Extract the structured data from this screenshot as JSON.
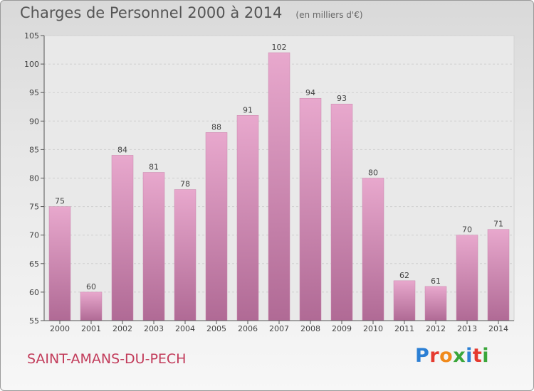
{
  "header": {
    "title": "Charges de Personnel 2000 à 2014",
    "subtitle": "(en milliers d'€)"
  },
  "footer": {
    "place": "SAINT-AMANS-DU-PECH",
    "logo": "Proxiti",
    "logo_colors": [
      "#2b7fd4",
      "#e53a2f",
      "#f08a1c",
      "#3aa63a",
      "#2b7fd4",
      "#e53a2f",
      "#3aa63a"
    ]
  },
  "chart_data": {
    "type": "bar",
    "categories": [
      "2000",
      "2001",
      "2002",
      "2003",
      "2004",
      "2005",
      "2006",
      "2007",
      "2008",
      "2009",
      "2010",
      "2011",
      "2012",
      "2013",
      "2014"
    ],
    "values": [
      75,
      60,
      84,
      81,
      78,
      88,
      91,
      102,
      94,
      93,
      80,
      62,
      61,
      70,
      71
    ],
    "ylim": [
      55,
      105
    ],
    "yticks": [
      55,
      60,
      65,
      70,
      75,
      80,
      85,
      90,
      95,
      100,
      105
    ],
    "grid": true,
    "bar_color": "#d98fb8"
  }
}
